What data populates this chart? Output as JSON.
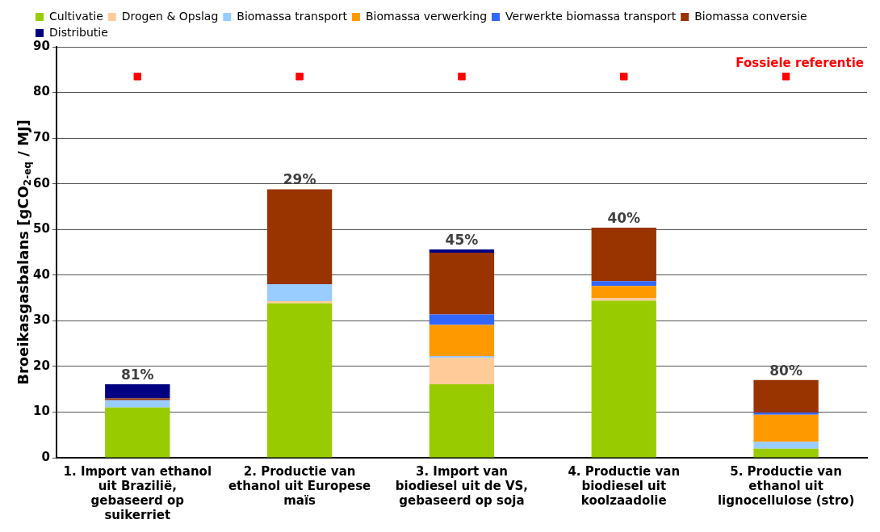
{
  "chart_data": {
    "type": "bar",
    "stacked": true,
    "ylabel": "Broeikasgasbalans [gCO$_{2-eq}$ / MJ]",
    "categories": [
      "1. Import van ethanol uit Brazilië, gebaseerd op suikerriet",
      "2. Productie van ethanol uit Europese maïs",
      "3. Import van biodiesel uit de VS, gebaseerd op soja",
      "4. Productie van biodiesel uit koolzaadolie",
      "5. Productie van ethanol uit lignocellulose (stro)"
    ],
    "series": [
      {
        "name": "Cultivatie",
        "color": "#99cc00",
        "values": [
          11,
          33.8,
          16.1,
          34.4,
          2.0
        ]
      },
      {
        "name": "Drogen & Opslag",
        "color": "#ffcc99",
        "values": [
          0,
          0.5,
          5.8,
          0.6,
          0
        ]
      },
      {
        "name": "Biomassa transport",
        "color": "#99ccff",
        "values": [
          1.6,
          3.7,
          0.4,
          0,
          1.5
        ]
      },
      {
        "name": "Biomassa verwerking",
        "color": "#ff9900",
        "values": [
          0,
          0,
          6.8,
          2.6,
          5.9
        ]
      },
      {
        "name": "Verwerkte biomassa transport",
        "color": "#3366ff",
        "values": [
          0,
          0,
          2.3,
          1.1,
          0.5
        ]
      },
      {
        "name": "Biomassa conversie",
        "color": "#993300",
        "values": [
          0.4,
          20.8,
          13.5,
          11.7,
          7.1
        ]
      },
      {
        "name": "Distributie",
        "color": "#000080",
        "values": [
          3.1,
          0,
          0.7,
          0,
          0
        ]
      },
      {
        "name": "Fossiele referentie",
        "type": "scatter",
        "marker": "square",
        "color": "#ff0000",
        "values": [
          83.5,
          83.5,
          83.5,
          83.5,
          83.5
        ]
      }
    ],
    "annotations": [
      {
        "text": "81%",
        "x": "1. Import van ethanol uit Brazilië, gebaseerd op suikerriet",
        "y": 16.1
      },
      {
        "text": "29%",
        "x": "2. Productie van ethanol uit Europese maïs",
        "y": 58.8
      },
      {
        "text": "45%",
        "x": "3. Import van biodiesel uit de VS, gebaseerd op soja",
        "y": 45.6
      },
      {
        "text": "40%",
        "x": "4. Productie van biodiesel uit koolzaadolie",
        "y": 50.4
      },
      {
        "text": "80%",
        "x": "5. Productie van ethanol uit lignocellulose (stro)",
        "y": 17.0
      }
    ],
    "ylim": [
      0,
      90
    ],
    "yticks": [
      0,
      10,
      20,
      30,
      40,
      50,
      60,
      70,
      80,
      90
    ],
    "grid": "y",
    "legend": "top"
  }
}
